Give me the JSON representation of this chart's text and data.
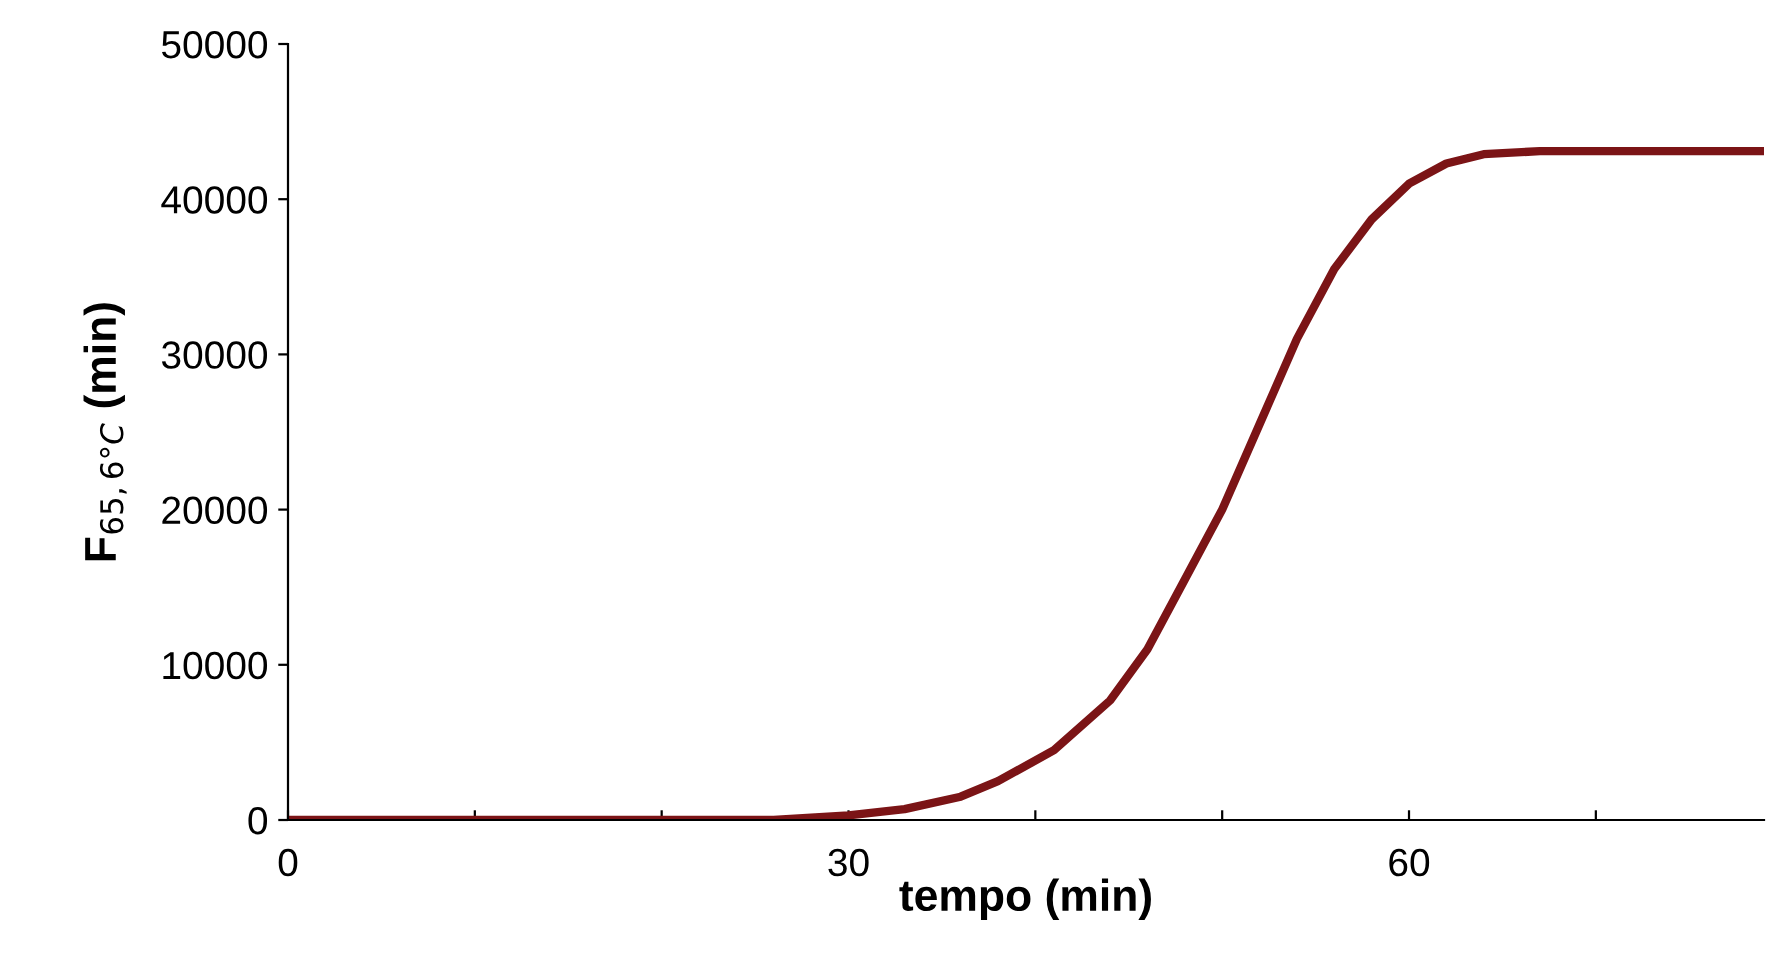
{
  "chart_data": {
    "type": "line",
    "xlabel": "tempo (min)",
    "ylabel": "F$_{65,6°C}$ (min)",
    "x": [
      0,
      10,
      20,
      26,
      30,
      33,
      36,
      38,
      41,
      44,
      46,
      48,
      50,
      52,
      54,
      56,
      58,
      60,
      62,
      64,
      67,
      79
    ],
    "series": [
      {
        "color": "#7b1416",
        "values": [
          0,
          0,
          0,
          0,
          300,
          700,
          1500,
          2500,
          4500,
          7700,
          11000,
          15500,
          20000,
          25500,
          31000,
          35500,
          38700,
          41000,
          42300,
          42900,
          43100,
          43100
        ]
      }
    ],
    "xlim": [
      0,
      79
    ],
    "xticks": [
      0,
      {
        "value": 10,
        "label": null
      },
      {
        "value": 20,
        "label": null
      },
      30,
      {
        "value": 40,
        "label": null
      },
      {
        "value": 50,
        "label": null
      },
      60,
      {
        "value": 70,
        "label": null
      }
    ],
    "ylim": [
      0,
      50000
    ],
    "yticks": [
      0,
      10000,
      20000,
      30000,
      40000,
      50000
    ],
    "grid": false,
    "legend": false,
    "marker": "none",
    "line_style": "solid"
  }
}
